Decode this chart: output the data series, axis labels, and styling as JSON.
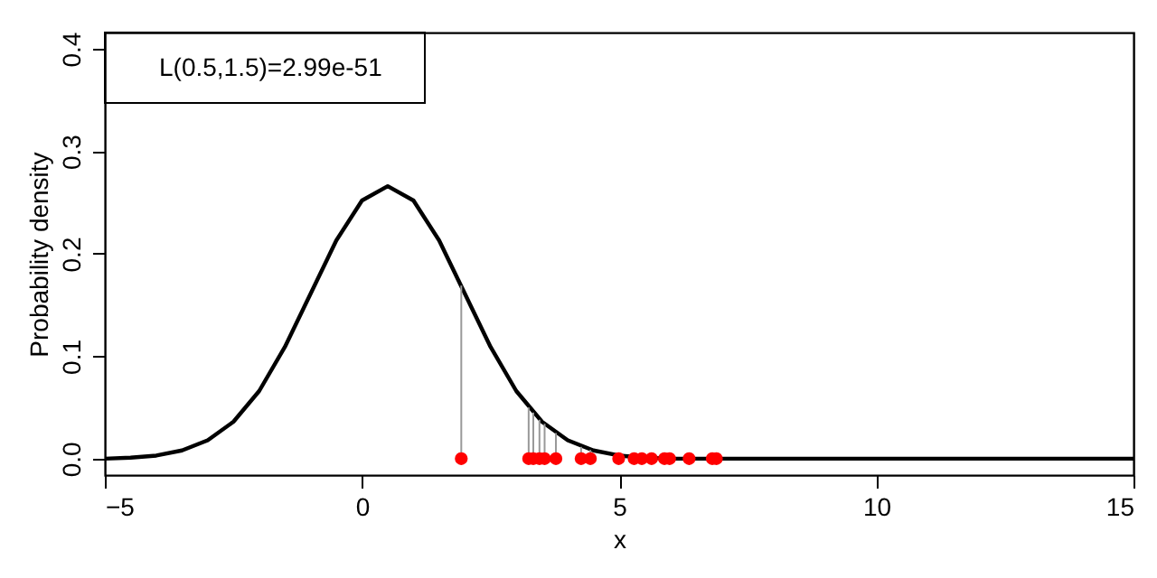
{
  "chart_data": {
    "type": "line",
    "xlabel": "x",
    "ylabel": "Probability density",
    "annotations": [
      "L(0.5,1.5)=2.99e-51"
    ],
    "xlim": [
      -5,
      15
    ],
    "xticks": [
      -5,
      0,
      5,
      10,
      15
    ],
    "ylim": [
      -0.016,
      0.416
    ],
    "yticks": [
      {
        "value": 0,
        "label": "0.0"
      },
      0.1,
      0.2,
      0.3,
      0.4
    ],
    "grid": false,
    "series": [
      {
        "color": "#000000",
        "marker": "none",
        "line_style": "solid",
        "x": [
          -5,
          -4.5,
          -4,
          -3.5,
          -3,
          -2.5,
          -2,
          -1.5,
          -1,
          -0.5,
          0,
          0.5,
          1,
          1.5,
          2,
          2.5,
          3,
          3.5,
          4,
          4.5,
          5,
          5.5,
          6,
          7,
          8,
          10,
          12,
          15
        ],
        "values": [
          0,
          0.001,
          0.003,
          0.008,
          0.018,
          0.036,
          0.066,
          0.109,
          0.161,
          0.213,
          0.252,
          0.266,
          0.252,
          0.213,
          0.161,
          0.109,
          0.066,
          0.036,
          0.018,
          0.008,
          0.003,
          0.001,
          0,
          0,
          0,
          0,
          0,
          0
        ]
      },
      {
        "type": "scatter",
        "color": "#ff0000",
        "marker": "circle",
        "x": [
          1.93,
          3.24,
          3.33,
          3.45,
          3.55,
          3.77,
          4.26,
          4.44,
          4.99,
          5.29,
          5.44,
          5.63,
          5.88,
          5.98,
          6.36,
          6.81,
          6.89
        ],
        "values": [
          0,
          0,
          0,
          0,
          0,
          0,
          0,
          0,
          0,
          0,
          0,
          0,
          0,
          0,
          0,
          0,
          0
        ],
        "errors": [
          [
            0,
            0.169
          ],
          [
            0,
            0.05
          ],
          [
            0,
            0.045
          ],
          [
            0,
            0.038
          ],
          [
            0,
            0.034
          ],
          [
            0,
            0.025
          ],
          [
            0,
            0.0115
          ],
          [
            0,
            0.0085
          ],
          [
            0,
            0.003
          ],
          null,
          null,
          null,
          null,
          null,
          null,
          null,
          null
        ]
      }
    ]
  }
}
